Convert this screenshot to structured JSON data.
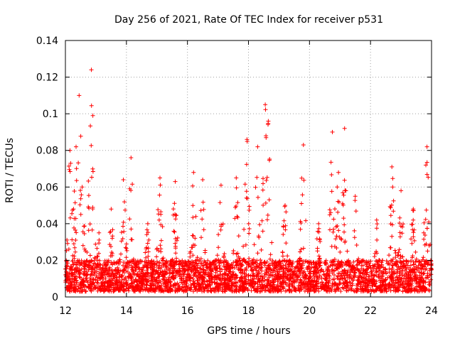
{
  "chart_data": {
    "type": "scatter",
    "title": "Day 256 of 2021, Rate Of TEC Index for receiver p531",
    "xlabel": "GPS time / hours",
    "ylabel": "ROTI / TECUs",
    "xlim": [
      12,
      24
    ],
    "ylim": [
      0,
      0.14
    ],
    "xticks": [
      12,
      14,
      16,
      18,
      20,
      22,
      24
    ],
    "xtick_labels": [
      "12",
      "14",
      "16",
      "18",
      "20",
      "22",
      "24"
    ],
    "yticks": [
      0,
      0.02,
      0.04,
      0.06,
      0.08,
      0.1,
      0.12,
      0.14
    ],
    "ytick_labels": [
      "0",
      "0.02",
      "0.04",
      "0.06",
      "0.08",
      "0.1",
      "0.12",
      "0.14"
    ],
    "grid": true,
    "marker": "+",
    "color": "#ff0000",
    "series": [
      {
        "name": "ROTI",
        "peaks": [
          {
            "x": 12.15,
            "y": 0.08
          },
          {
            "x": 12.35,
            "y": 0.082
          },
          {
            "x": 12.45,
            "y": 0.11
          },
          {
            "x": 12.55,
            "y": 0.06
          },
          {
            "x": 12.85,
            "y": 0.124
          },
          {
            "x": 12.9,
            "y": 0.099
          },
          {
            "x": 13.1,
            "y": 0.035
          },
          {
            "x": 13.5,
            "y": 0.048
          },
          {
            "x": 13.9,
            "y": 0.064
          },
          {
            "x": 14.15,
            "y": 0.076
          },
          {
            "x": 14.7,
            "y": 0.04
          },
          {
            "x": 15.1,
            "y": 0.065
          },
          {
            "x": 15.6,
            "y": 0.063
          },
          {
            "x": 16.2,
            "y": 0.068
          },
          {
            "x": 16.5,
            "y": 0.064
          },
          {
            "x": 17.1,
            "y": 0.061
          },
          {
            "x": 17.6,
            "y": 0.065
          },
          {
            "x": 17.95,
            "y": 0.086
          },
          {
            "x": 18.3,
            "y": 0.082
          },
          {
            "x": 18.55,
            "y": 0.105
          },
          {
            "x": 18.65,
            "y": 0.096
          },
          {
            "x": 19.2,
            "y": 0.05
          },
          {
            "x": 19.8,
            "y": 0.083
          },
          {
            "x": 20.3,
            "y": 0.04
          },
          {
            "x": 20.75,
            "y": 0.09
          },
          {
            "x": 20.95,
            "y": 0.068
          },
          {
            "x": 21.15,
            "y": 0.092
          },
          {
            "x": 21.5,
            "y": 0.055
          },
          {
            "x": 22.2,
            "y": 0.042
          },
          {
            "x": 22.7,
            "y": 0.071
          },
          {
            "x": 23.0,
            "y": 0.058
          },
          {
            "x": 23.4,
            "y": 0.048
          },
          {
            "x": 23.85,
            "y": 0.082
          }
        ],
        "baseline_range": [
          0.003,
          0.02
        ],
        "sample_count": 3600
      }
    ]
  }
}
